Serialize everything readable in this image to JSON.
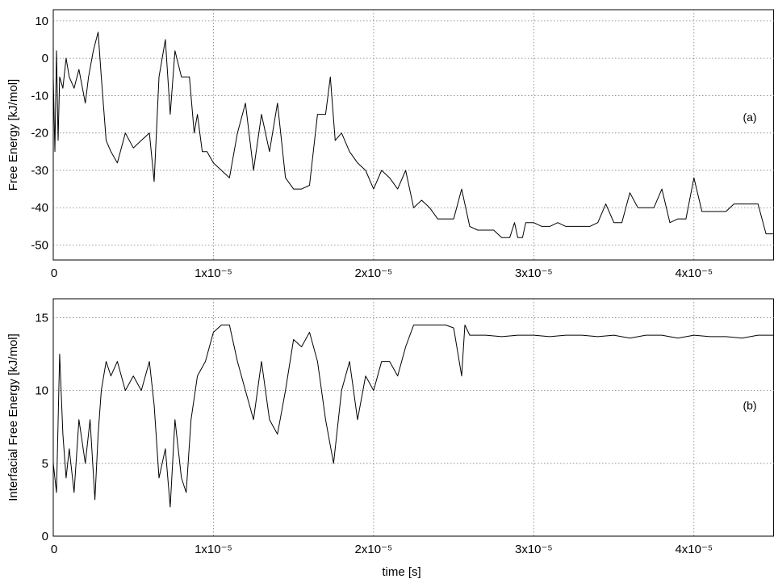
{
  "chart_data": [
    {
      "type": "line",
      "panel_label": "(a)",
      "ylabel": "Free Energy [kJ/mol]",
      "xlabel": "",
      "xlim": [
        0,
        4.5e-05
      ],
      "ylim": [
        -54,
        13
      ],
      "grid": true,
      "x_ticks": [
        {
          "value": 0,
          "label": "0"
        },
        {
          "value": 1e-05,
          "label": "1x10⁻⁵"
        },
        {
          "value": 2e-05,
          "label": "2x10⁻⁵"
        },
        {
          "value": 3e-05,
          "label": "3x10⁻⁵"
        },
        {
          "value": 4e-05,
          "label": "4x10⁻⁵"
        }
      ],
      "y_ticks": [
        {
          "value": 10,
          "label": "10"
        },
        {
          "value": 0,
          "label": "0"
        },
        {
          "value": -10,
          "label": "-10"
        },
        {
          "value": -20,
          "label": "-20"
        },
        {
          "value": -30,
          "label": "-30"
        },
        {
          "value": -40,
          "label": "-40"
        },
        {
          "value": -50,
          "label": "-50"
        }
      ],
      "series": [
        {
          "x": [
            0,
            1e-07,
            2e-07,
            3e-07,
            4e-07,
            6e-07,
            8e-07,
            1e-06,
            1.3e-06,
            1.6e-06,
            2e-06,
            2.2e-06,
            2.5e-06,
            2.8e-06,
            3e-06,
            3.3e-06,
            3.6e-06,
            4e-06,
            4.5e-06,
            5e-06,
            5.5e-06,
            6e-06,
            6.3e-06,
            6.6e-06,
            7e-06,
            7.3e-06,
            7.6e-06,
            8e-06,
            8.5e-06,
            8.8e-06,
            9e-06,
            9.3e-06,
            9.6e-06,
            1e-05,
            1.05e-05,
            1.1e-05,
            1.15e-05,
            1.2e-05,
            1.25e-05,
            1.3e-05,
            1.35e-05,
            1.4e-05,
            1.45e-05,
            1.5e-05,
            1.55e-05,
            1.6e-05,
            1.65e-05,
            1.7e-05,
            1.73e-05,
            1.76e-05,
            1.8e-05,
            1.85e-05,
            1.9e-05,
            1.95e-05,
            2e-05,
            2.05e-05,
            2.1e-05,
            2.15e-05,
            2.2e-05,
            2.25e-05,
            2.3e-05,
            2.35e-05,
            2.4e-05,
            2.45e-05,
            2.5e-05,
            2.55e-05,
            2.6e-05,
            2.65e-05,
            2.7e-05,
            2.75e-05,
            2.8e-05,
            2.85e-05,
            2.88e-05,
            2.9e-05,
            2.93e-05,
            2.95e-05,
            3e-05,
            3.05e-05,
            3.1e-05,
            3.15e-05,
            3.2e-05,
            3.25e-05,
            3.3e-05,
            3.35e-05,
            3.4e-05,
            3.45e-05,
            3.5e-05,
            3.55e-05,
            3.6e-05,
            3.65e-05,
            3.7e-05,
            3.75e-05,
            3.8e-05,
            3.85e-05,
            3.9e-05,
            3.95e-05,
            4e-05,
            4.05e-05,
            4.1e-05,
            4.15e-05,
            4.2e-05,
            4.25e-05,
            4.3e-05,
            4.35e-05,
            4.4e-05,
            4.45e-05,
            4.5e-05
          ],
          "y": [
            -5,
            -25,
            2,
            -22,
            -5,
            -8,
            0,
            -5,
            -8,
            -3,
            -12,
            -5,
            2,
            7,
            -5,
            -22,
            -25,
            -28,
            -20,
            -24,
            -22,
            -20,
            -33,
            -5,
            5,
            -15,
            2,
            -5,
            -5,
            -20,
            -15,
            -25,
            -25,
            -28,
            -30,
            -32,
            -20,
            -12,
            -30,
            -15,
            -25,
            -12,
            -32,
            -35,
            -35,
            -34,
            -15,
            -15,
            -5,
            -22,
            -20,
            -25,
            -28,
            -30,
            -35,
            -30,
            -32,
            -35,
            -30,
            -40,
            -38,
            -40,
            -43,
            -43,
            -43,
            -35,
            -45,
            -46,
            -46,
            -46,
            -48,
            -48,
            -44,
            -48,
            -48,
            -44,
            -44,
            -45,
            -45,
            -44,
            -45,
            -45,
            -45,
            -45,
            -44,
            -39,
            -44,
            -44,
            -36,
            -40,
            -40,
            -40,
            -35,
            -44,
            -43,
            -43,
            -32,
            -41,
            -41,
            -41,
            -41,
            -39,
            -39,
            -39,
            -39,
            -47,
            -47
          ]
        }
      ]
    },
    {
      "type": "line",
      "panel_label": "(b)",
      "ylabel": "Interfacial Free Energy [kJ/mol]",
      "xlabel": "time [s]",
      "xlim": [
        0,
        4.5e-05
      ],
      "ylim": [
        0,
        16.3
      ],
      "grid": true,
      "x_ticks": [
        {
          "value": 0,
          "label": "0"
        },
        {
          "value": 1e-05,
          "label": "1x10⁻⁵"
        },
        {
          "value": 2e-05,
          "label": "2x10⁻⁵"
        },
        {
          "value": 3e-05,
          "label": "3x10⁻⁵"
        },
        {
          "value": 4e-05,
          "label": "4x10⁻⁵"
        }
      ],
      "y_ticks": [
        {
          "value": 15,
          "label": "15"
        },
        {
          "value": 10,
          "label": "10"
        },
        {
          "value": 5,
          "label": "5"
        },
        {
          "value": 0,
          "label": "0"
        }
      ],
      "series": [
        {
          "x": [
            0,
            2e-07,
            4e-07,
            6e-07,
            8e-07,
            1e-06,
            1.3e-06,
            1.6e-06,
            2e-06,
            2.3e-06,
            2.6e-06,
            2.8e-06,
            3e-06,
            3.3e-06,
            3.6e-06,
            4e-06,
            4.5e-06,
            5e-06,
            5.5e-06,
            6e-06,
            6.3e-06,
            6.6e-06,
            7e-06,
            7.3e-06,
            7.6e-06,
            8e-06,
            8.3e-06,
            8.6e-06,
            9e-06,
            9.5e-06,
            1e-05,
            1.05e-05,
            1.1e-05,
            1.15e-05,
            1.2e-05,
            1.25e-05,
            1.3e-05,
            1.35e-05,
            1.4e-05,
            1.45e-05,
            1.5e-05,
            1.55e-05,
            1.6e-05,
            1.65e-05,
            1.7e-05,
            1.75e-05,
            1.8e-05,
            1.85e-05,
            1.9e-05,
            1.95e-05,
            2e-05,
            2.05e-05,
            2.1e-05,
            2.15e-05,
            2.2e-05,
            2.25e-05,
            2.3e-05,
            2.35e-05,
            2.4e-05,
            2.45e-05,
            2.5e-05,
            2.55e-05,
            2.57e-05,
            2.6e-05,
            2.65e-05,
            2.7e-05,
            2.8e-05,
            2.9e-05,
            3e-05,
            3.1e-05,
            3.2e-05,
            3.3e-05,
            3.4e-05,
            3.5e-05,
            3.6e-05,
            3.7e-05,
            3.8e-05,
            3.9e-05,
            4e-05,
            4.1e-05,
            4.2e-05,
            4.3e-05,
            4.4e-05,
            4.5e-05
          ],
          "y": [
            5,
            3,
            12.5,
            7,
            4,
            6,
            3,
            8,
            5,
            8,
            2.5,
            7,
            10,
            12,
            11,
            12,
            10,
            11,
            10,
            12,
            9,
            4,
            6,
            2,
            8,
            4,
            3,
            8,
            11,
            12,
            14,
            14.5,
            14.5,
            12,
            10,
            8,
            12,
            8,
            7,
            10,
            13.5,
            13,
            14,
            12,
            8,
            5,
            10,
            12,
            8,
            11,
            10,
            12,
            12,
            11,
            13,
            14.5,
            14.5,
            14.5,
            14.5,
            14.5,
            14.3,
            11,
            14.5,
            13.8,
            13.8,
            13.8,
            13.7,
            13.8,
            13.8,
            13.7,
            13.8,
            13.8,
            13.7,
            13.8,
            13.6,
            13.8,
            13.8,
            13.6,
            13.8,
            13.7,
            13.7,
            13.6,
            13.8,
            13.8
          ]
        }
      ]
    }
  ]
}
